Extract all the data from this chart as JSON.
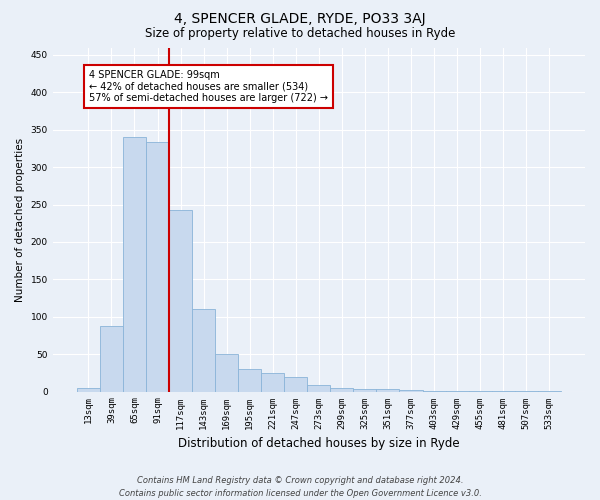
{
  "title": "4, SPENCER GLADE, RYDE, PO33 3AJ",
  "subtitle": "Size of property relative to detached houses in Ryde",
  "xlabel": "Distribution of detached houses by size in Ryde",
  "ylabel": "Number of detached properties",
  "categories": [
    "13sqm",
    "39sqm",
    "65sqm",
    "91sqm",
    "117sqm",
    "143sqm",
    "169sqm",
    "195sqm",
    "221sqm",
    "247sqm",
    "273sqm",
    "299sqm",
    "325sqm",
    "351sqm",
    "377sqm",
    "403sqm",
    "429sqm",
    "455sqm",
    "481sqm",
    "507sqm",
    "533sqm"
  ],
  "values": [
    5,
    88,
    340,
    333,
    243,
    110,
    50,
    30,
    25,
    20,
    9,
    5,
    4,
    3,
    2,
    1,
    1,
    0.5,
    0.3,
    0.2,
    0.2
  ],
  "bar_color": "#c8d9ee",
  "bar_edge_color": "#8ab4d8",
  "vline_x": 3.5,
  "vline_color": "#cc0000",
  "ylim": [
    0,
    460
  ],
  "yticks": [
    0,
    50,
    100,
    150,
    200,
    250,
    300,
    350,
    400,
    450
  ],
  "annotation_text": "4 SPENCER GLADE: 99sqm\n← 42% of detached houses are smaller (534)\n57% of semi-detached houses are larger (722) →",
  "annotation_box_color": "#ffffff",
  "annotation_box_edge": "#cc0000",
  "footnote": "Contains HM Land Registry data © Crown copyright and database right 2024.\nContains public sector information licensed under the Open Government Licence v3.0.",
  "background_color": "#eaf0f8",
  "grid_color": "#ffffff",
  "title_fontsize": 10,
  "subtitle_fontsize": 8.5,
  "xlabel_fontsize": 8.5,
  "ylabel_fontsize": 7.5,
  "tick_fontsize": 6.5,
  "annotation_fontsize": 7,
  "footnote_fontsize": 6
}
